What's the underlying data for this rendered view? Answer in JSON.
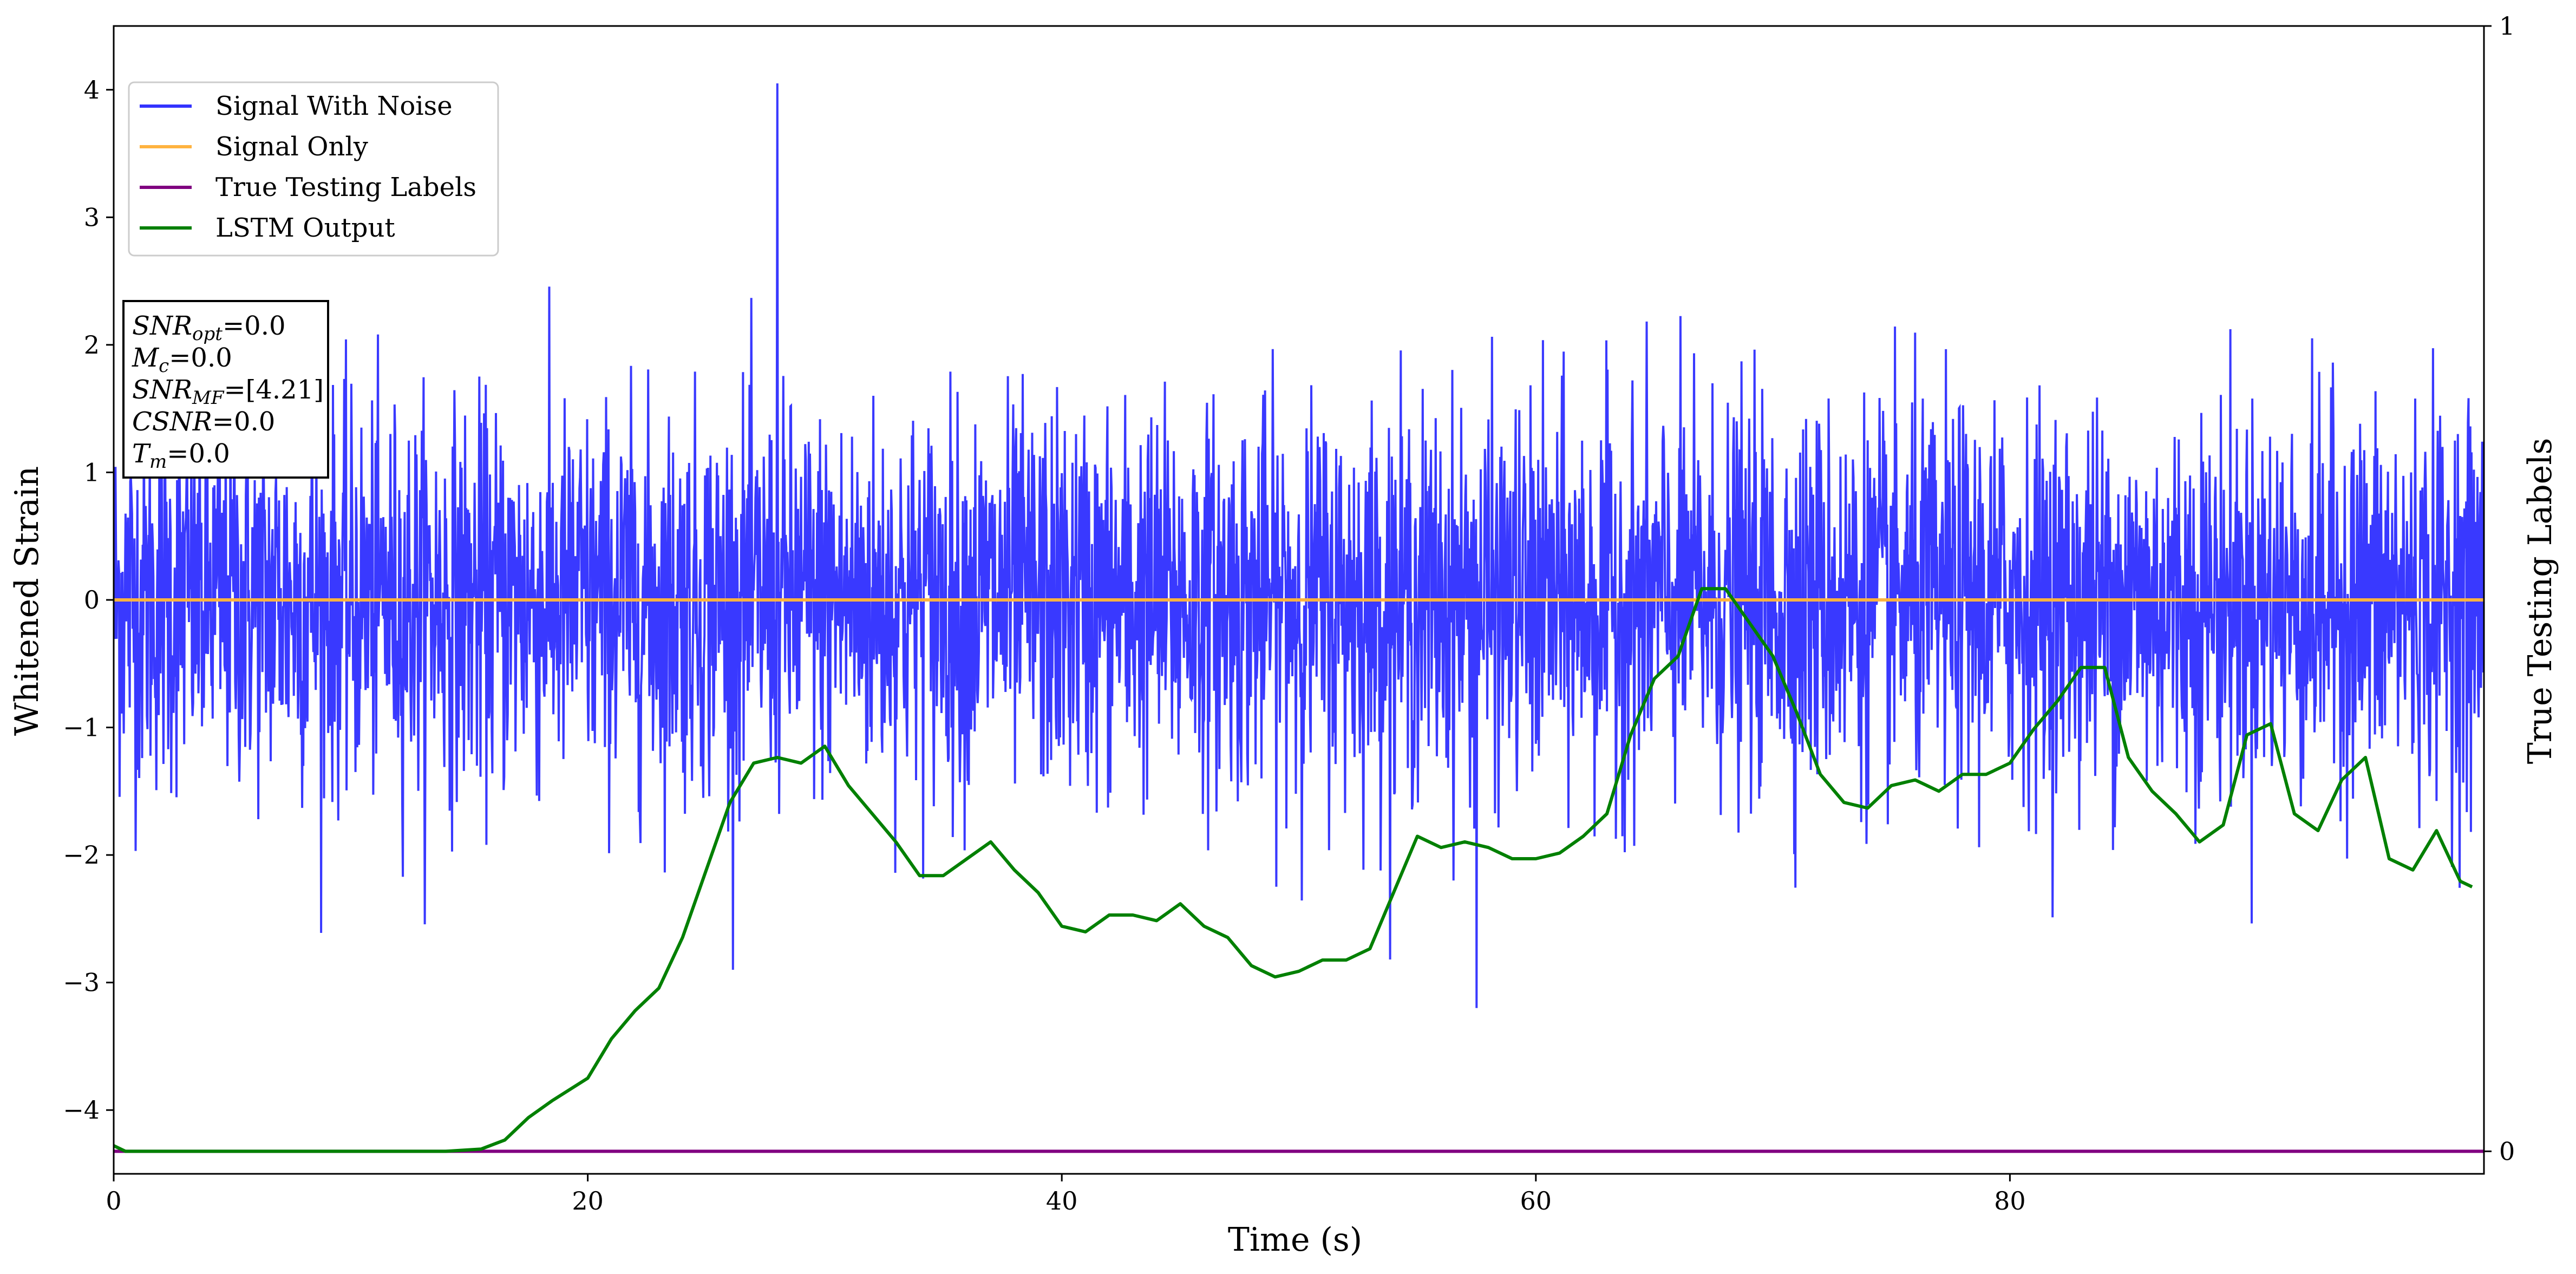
{
  "chart_data": {
    "type": "line",
    "xlabel": "Time (s)",
    "ylabel": "Whitened Strain",
    "y2label": "True Testing Labels",
    "xlim": [
      0,
      100
    ],
    "ylim": [
      -4.5,
      4.5
    ],
    "y2lim": [
      -0.02,
      1.0
    ],
    "xticks": [
      "0",
      "20",
      "40",
      "60",
      "80"
    ],
    "yticks": [
      "4",
      "3",
      "2",
      "1",
      "0",
      "−1",
      "−2",
      "−3",
      "−4"
    ],
    "y2ticks": [
      "1",
      "0"
    ],
    "legend_position": "upper-left",
    "series": [
      {
        "name": "Signal With Noise",
        "color": "#3333ff",
        "axis": "left",
        "kind": "noise",
        "sigma": 0.75,
        "max": 4.05,
        "min": -3.2,
        "x_range": [
          0,
          100
        ]
      },
      {
        "name": "Signal Only",
        "color": "#ffb340",
        "axis": "left",
        "x": [
          0,
          100
        ],
        "y": [
          0,
          0
        ]
      },
      {
        "name": "True Testing Labels",
        "color": "#800080",
        "axis": "right",
        "x": [
          0,
          100
        ],
        "y": [
          0,
          0
        ]
      },
      {
        "name": "LSTM Output",
        "color": "#008000",
        "axis": "right",
        "x": [
          0,
          0.5,
          2,
          10,
          14,
          15.5,
          16.5,
          17.5,
          18.5,
          20,
          21,
          22,
          23,
          24,
          25,
          26,
          27,
          28,
          29,
          30,
          31,
          32,
          33,
          34,
          35,
          36,
          37,
          38,
          39,
          40,
          41,
          42,
          43,
          44,
          45,
          46,
          47,
          48,
          49,
          50,
          51,
          52,
          53,
          54,
          55,
          56,
          57,
          58,
          59,
          60,
          61,
          62,
          63,
          64,
          65,
          66,
          67,
          68,
          69,
          70,
          71,
          72,
          73,
          74,
          75,
          76,
          77,
          78,
          79,
          80,
          81,
          82,
          83,
          84,
          85,
          86,
          87,
          88,
          89,
          90,
          91,
          92,
          93,
          94,
          95,
          96,
          97,
          98,
          99,
          99.5
        ],
        "y": [
          0.005,
          0.0,
          0.0,
          0.0,
          0.0,
          0.002,
          0.01,
          0.03,
          0.045,
          0.065,
          0.1,
          0.125,
          0.145,
          0.19,
          0.25,
          0.31,
          0.345,
          0.35,
          0.345,
          0.36,
          0.325,
          0.3,
          0.275,
          0.245,
          0.245,
          0.26,
          0.275,
          0.25,
          0.23,
          0.2,
          0.195,
          0.21,
          0.21,
          0.205,
          0.22,
          0.2,
          0.19,
          0.165,
          0.155,
          0.16,
          0.17,
          0.17,
          0.18,
          0.23,
          0.28,
          0.27,
          0.275,
          0.27,
          0.26,
          0.26,
          0.265,
          0.28,
          0.3,
          0.37,
          0.42,
          0.44,
          0.5,
          0.5,
          0.47,
          0.44,
          0.39,
          0.335,
          0.31,
          0.305,
          0.325,
          0.33,
          0.32,
          0.335,
          0.335,
          0.345,
          0.375,
          0.4,
          0.43,
          0.43,
          0.35,
          0.32,
          0.3,
          0.275,
          0.29,
          0.37,
          0.38,
          0.3,
          0.285,
          0.33,
          0.35,
          0.26,
          0.25,
          0.285,
          0.24,
          0.235
        ]
      }
    ],
    "annotations": [
      {
        "main": "SNR",
        "sub": "opt",
        "suffix": "=0.0"
      },
      {
        "main": "M",
        "sub": "c",
        "suffix": "=0.0"
      },
      {
        "main": "SNR",
        "sub": "MF",
        "suffix": "=[4.21]"
      },
      {
        "main": "CSNR",
        "sub": "",
        "suffix": "=0.0"
      },
      {
        "main": "T",
        "sub": "m",
        "suffix": "=0.0"
      }
    ]
  }
}
